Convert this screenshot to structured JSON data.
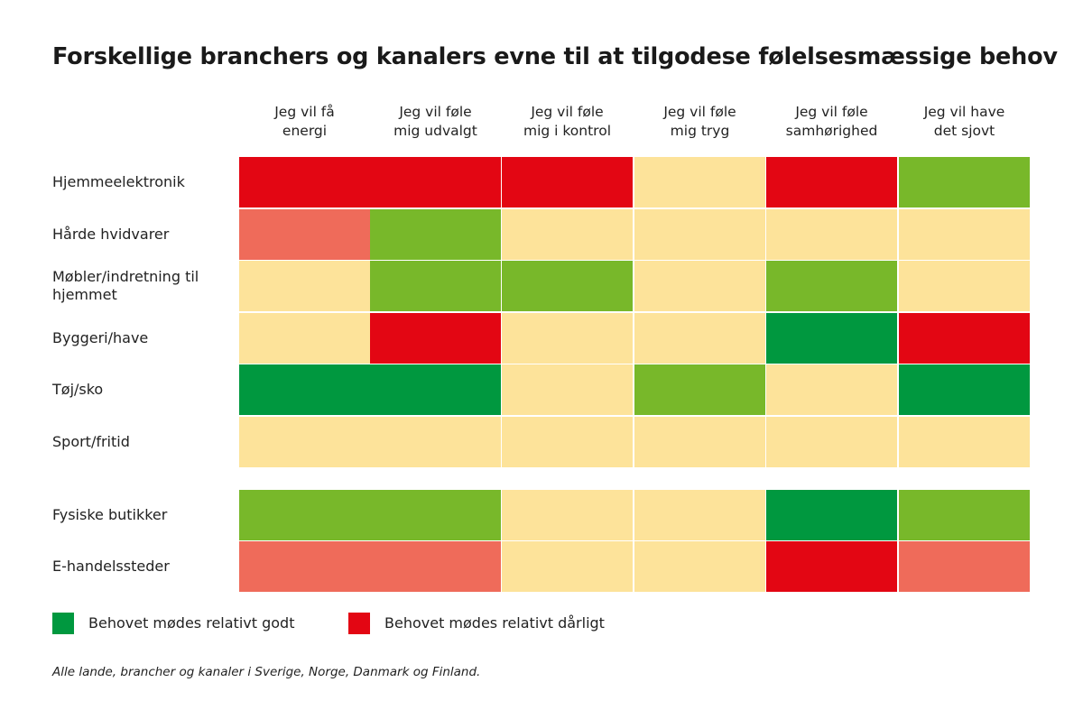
{
  "title": "Forskellige branchers og kanalers evne til at tilgodese følelsesmæssige behov",
  "columns": [
    [
      "Jeg vil få",
      "energi"
    ],
    [
      "Jeg vil føle",
      "mig udvalgt"
    ],
    [
      "Jeg vil føle",
      "mig i kontrol"
    ],
    [
      "Jeg vil føle",
      "mig tryg"
    ],
    [
      "Jeg vil føle",
      "samhørighed"
    ],
    [
      "Jeg vil have",
      "det sjovt"
    ]
  ],
  "chart_data": {
    "type": "heatmap",
    "rows": [
      {
        "label": [
          "Hjemmeelektronik"
        ],
        "cells": [
          "red",
          "red",
          "red",
          "neutral",
          "red",
          "green"
        ]
      },
      {
        "label": [
          "Hårde hvidvarer"
        ],
        "cells": [
          "light-red",
          "green",
          "neutral",
          "neutral",
          "neutral",
          "neutral"
        ]
      },
      {
        "label": [
          "Møbler/indretning til",
          "hjemmet"
        ],
        "cells": [
          "neutral",
          "green",
          "green",
          "neutral",
          "green",
          "neutral"
        ]
      },
      {
        "label": [
          "Byggeri/have"
        ],
        "cells": [
          "neutral",
          "red",
          "neutral",
          "neutral",
          "dark-green",
          "red"
        ]
      },
      {
        "label": [
          "Tøj/sko"
        ],
        "cells": [
          "dark-green",
          "dark-green",
          "neutral",
          "green",
          "neutral",
          "dark-green"
        ]
      },
      {
        "label": [
          "Sport/fritid"
        ],
        "cells": [
          "neutral",
          "neutral",
          "neutral",
          "neutral",
          "neutral",
          "neutral"
        ]
      },
      {
        "label": [
          "Fysiske butikker"
        ],
        "cells": [
          "green",
          "green",
          "neutral",
          "neutral",
          "dark-green",
          "green"
        ]
      },
      {
        "label": [
          "E-handelssteder"
        ],
        "cells": [
          "light-red",
          "light-red",
          "neutral",
          "neutral",
          "red",
          "light-red"
        ]
      }
    ]
  },
  "colors": {
    "red": "#e30613",
    "light-red": "#ef6b5a",
    "neutral": "#fde39a",
    "green": "#78b82a",
    "dark-green": "#00983f"
  },
  "legend": [
    {
      "color": "#00983f",
      "label": "Behovet mødes relativt godt"
    },
    {
      "color": "#e30613",
      "label": "Behovet mødes relativt dårligt"
    }
  ],
  "footnote": "Alle lande, brancher og kanaler i Sverige, Norge, Danmark og Finland."
}
